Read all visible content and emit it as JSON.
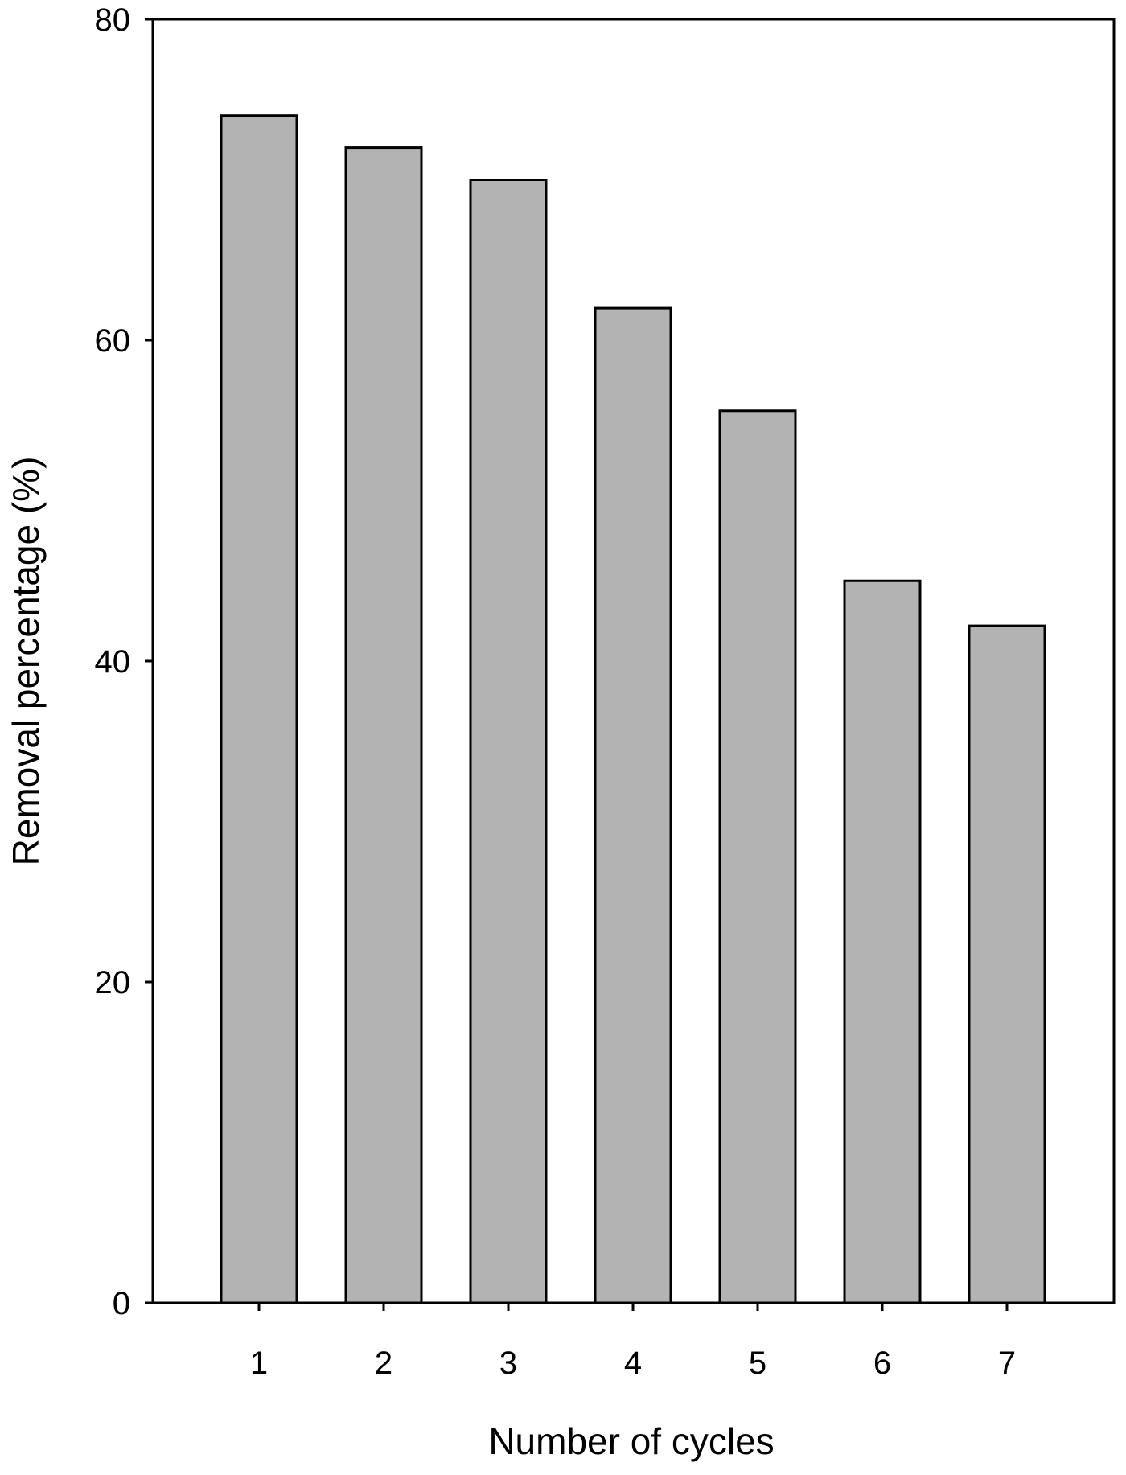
{
  "chart_data": {
    "type": "bar",
    "categories": [
      "1",
      "2",
      "3",
      "4",
      "5",
      "6",
      "7"
    ],
    "values": [
      74.0,
      72.0,
      70.0,
      62.0,
      55.6,
      45.0,
      42.2
    ],
    "xlabel": "Number of cycles",
    "ylabel": "Removal percentage (%)",
    "ylim": [
      0,
      80
    ],
    "yticks": [
      "0",
      "20",
      "40",
      "60",
      "80"
    ],
    "grid": false,
    "legend": "none",
    "colors": {
      "bar_fill": "#b3b3b3",
      "bar_stroke": "#000000",
      "axis": "#000000"
    }
  }
}
